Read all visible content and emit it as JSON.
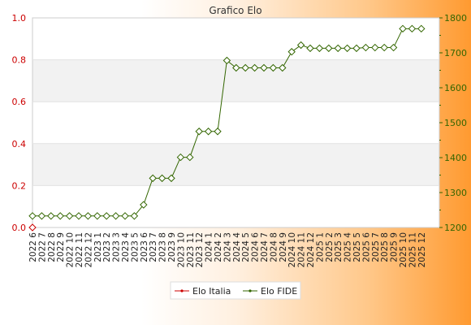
{
  "chart_data": {
    "type": "line",
    "title": "Grafico Elo",
    "x": [
      "2022 6",
      "2022 7",
      "2022 8",
      "2022 9",
      "2022 10",
      "2022 11",
      "2022 12",
      "2023 1",
      "2023 2",
      "2023 3",
      "2023 4",
      "2023 5",
      "2023 6",
      "2023 7",
      "2023 8",
      "2023 9",
      "2023 10",
      "2023 11",
      "2023 12",
      "2024 1",
      "2024 2",
      "2024 3",
      "2024 4",
      "2024 5",
      "2024 6",
      "2024 7",
      "2024 8",
      "2024 9",
      "2024 10",
      "2024 11",
      "2024 12",
      "2025 1",
      "2025 2",
      "2025 3",
      "2025 4",
      "2025 5",
      "2025 6",
      "2025 7",
      "2025 8",
      "2025 9",
      "2025 10",
      "2025 11",
      "2025 12"
    ],
    "y_left": {
      "ylim": [
        0,
        1
      ],
      "ticks": [
        "0.0",
        "0.2",
        "0.4",
        "0.6",
        "0.8",
        "1.0"
      ],
      "color": "#cc0000"
    },
    "y_right": {
      "ylim": [
        1200,
        1800
      ],
      "ticks": [
        "1200",
        "1300",
        "1400",
        "1500",
        "1600",
        "1700",
        "1800"
      ],
      "color": "#336600"
    },
    "series": [
      {
        "name": "Elo Italia",
        "axis": "left",
        "color": "#cc0000",
        "values": [
          0,
          null,
          null,
          null,
          null,
          null,
          null,
          null,
          null,
          null,
          null,
          null,
          null,
          null,
          null,
          null,
          null,
          null,
          null,
          null,
          null,
          null,
          null,
          null,
          null,
          null,
          null,
          null,
          null,
          null,
          null,
          null,
          null,
          null,
          null,
          null,
          null,
          null,
          null,
          null,
          null,
          null,
          null
        ]
      },
      {
        "name": "Elo FIDE",
        "axis": "right",
        "color": "#336600",
        "values": [
          1233,
          1233,
          1233,
          1233,
          1233,
          1233,
          1233,
          1233,
          1233,
          1233,
          1233,
          1233,
          1265,
          1341,
          1341,
          1341,
          1401,
          1401,
          1475,
          1475,
          1475,
          1678,
          1657,
          1657,
          1657,
          1657,
          1657,
          1657,
          1703,
          1722,
          1713,
          1713,
          1713,
          1713,
          1713,
          1713,
          1715,
          1715,
          1715,
          1715,
          1769,
          1769,
          1769
        ]
      }
    ],
    "grid": true,
    "legend": "bottom-center"
  }
}
